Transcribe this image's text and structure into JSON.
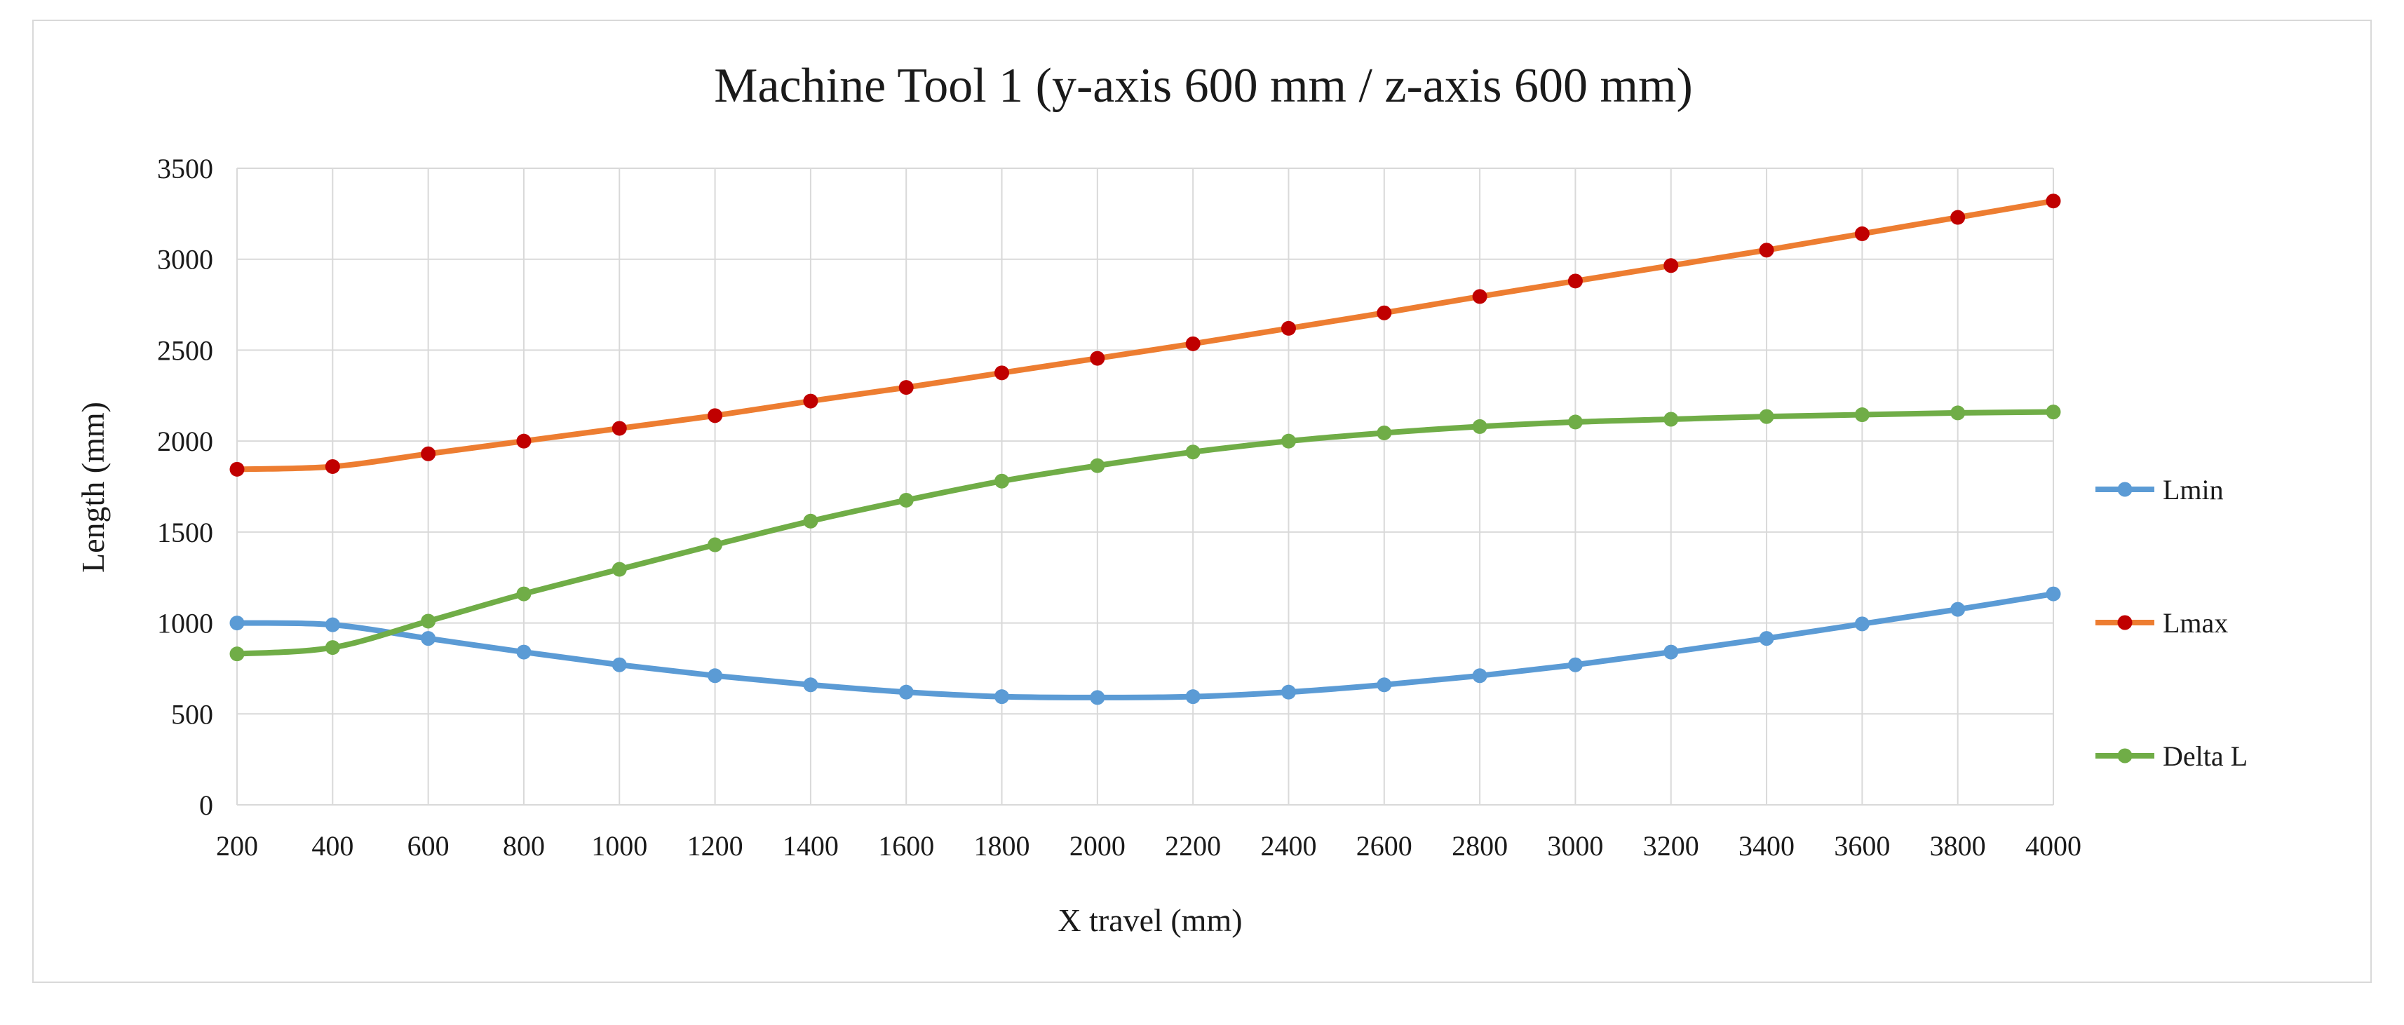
{
  "chart_data": {
    "type": "line",
    "title": "Machine Tool 1 (y-axis 600 mm / z-axis 600 mm)",
    "xlabel": "X travel (mm)",
    "ylabel": "Length (mm)",
    "x": [
      200,
      400,
      600,
      800,
      1000,
      1200,
      1400,
      1600,
      1800,
      2000,
      2200,
      2400,
      2600,
      2800,
      3000,
      3200,
      3400,
      3600,
      3800,
      4000
    ],
    "xlim": [
      200,
      4000
    ],
    "ylim": [
      0,
      3500
    ],
    "yticks": [
      0,
      500,
      1000,
      1500,
      2000,
      2500,
      3000,
      3500
    ],
    "grid": true,
    "legend_position": "right",
    "series": [
      {
        "name": "Lmin",
        "color": "#5b9bd5",
        "values": [
          1000,
          990,
          915,
          840,
          770,
          710,
          660,
          620,
          595,
          590,
          595,
          620,
          660,
          710,
          770,
          840,
          915,
          995,
          1075,
          1160
        ]
      },
      {
        "name": "Lmax",
        "color": "#ed7d31",
        "marker_color": "#c00000",
        "values": [
          1845,
          1860,
          1930,
          2000,
          2070,
          2140,
          2220,
          2295,
          2375,
          2455,
          2535,
          2620,
          2705,
          2795,
          2880,
          2965,
          3050,
          3140,
          3230,
          3320
        ]
      },
      {
        "name": "Delta L",
        "color": "#70ad47",
        "values": [
          830,
          865,
          1010,
          1160,
          1295,
          1430,
          1560,
          1675,
          1780,
          1865,
          1940,
          2000,
          2045,
          2080,
          2105,
          2120,
          2135,
          2145,
          2155,
          2160
        ]
      }
    ]
  }
}
